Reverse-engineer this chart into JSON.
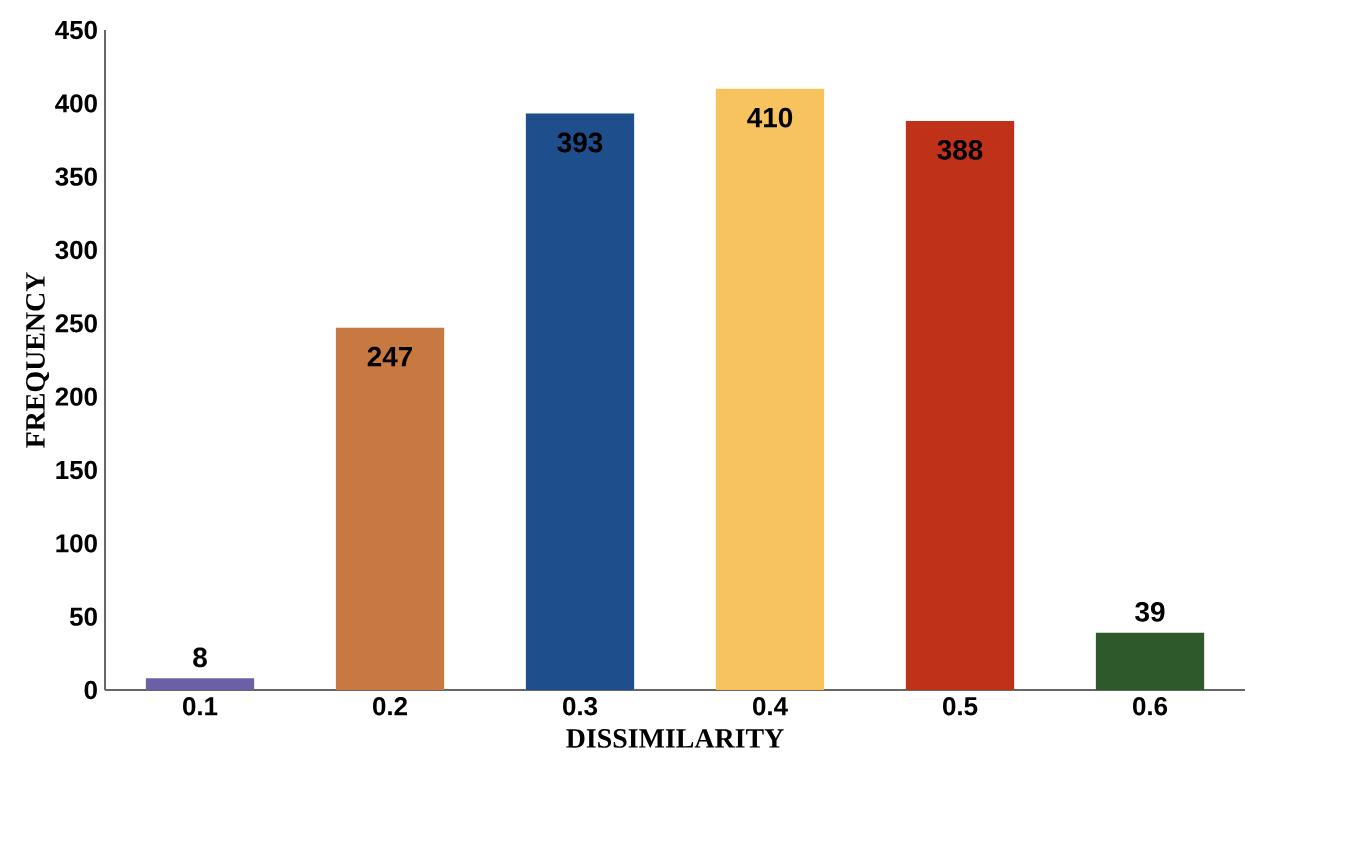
{
  "chart_data": {
    "type": "bar",
    "xlabel": "DISSIMILARITY",
    "ylabel": "FREQUENCY",
    "categories": [
      "0.1",
      "0.2",
      "0.3",
      "0.4",
      "0.5",
      "0.6"
    ],
    "values": [
      8,
      247,
      393,
      410,
      388,
      39
    ],
    "colors": [
      "#6b5fa8",
      "#c87941",
      "#1f4e8c",
      "#f7c35f",
      "#c0311a",
      "#2e5a2b"
    ],
    "ylim": [
      0,
      450
    ],
    "yticks": [
      0,
      50,
      100,
      150,
      200,
      250,
      300,
      350,
      400,
      450
    ],
    "data_labels": true
  }
}
